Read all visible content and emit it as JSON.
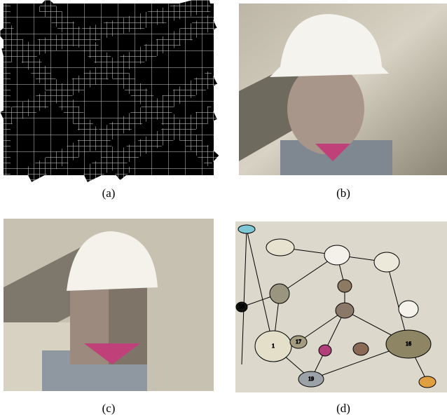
{
  "panels": [
    {
      "caption": "(a)"
    },
    {
      "caption": "(b)"
    },
    {
      "caption": "(c)"
    },
    {
      "caption": "(d)"
    }
  ],
  "graph": {
    "node_labels": [
      "16",
      "19",
      "1",
      "17",
      "58"
    ]
  }
}
